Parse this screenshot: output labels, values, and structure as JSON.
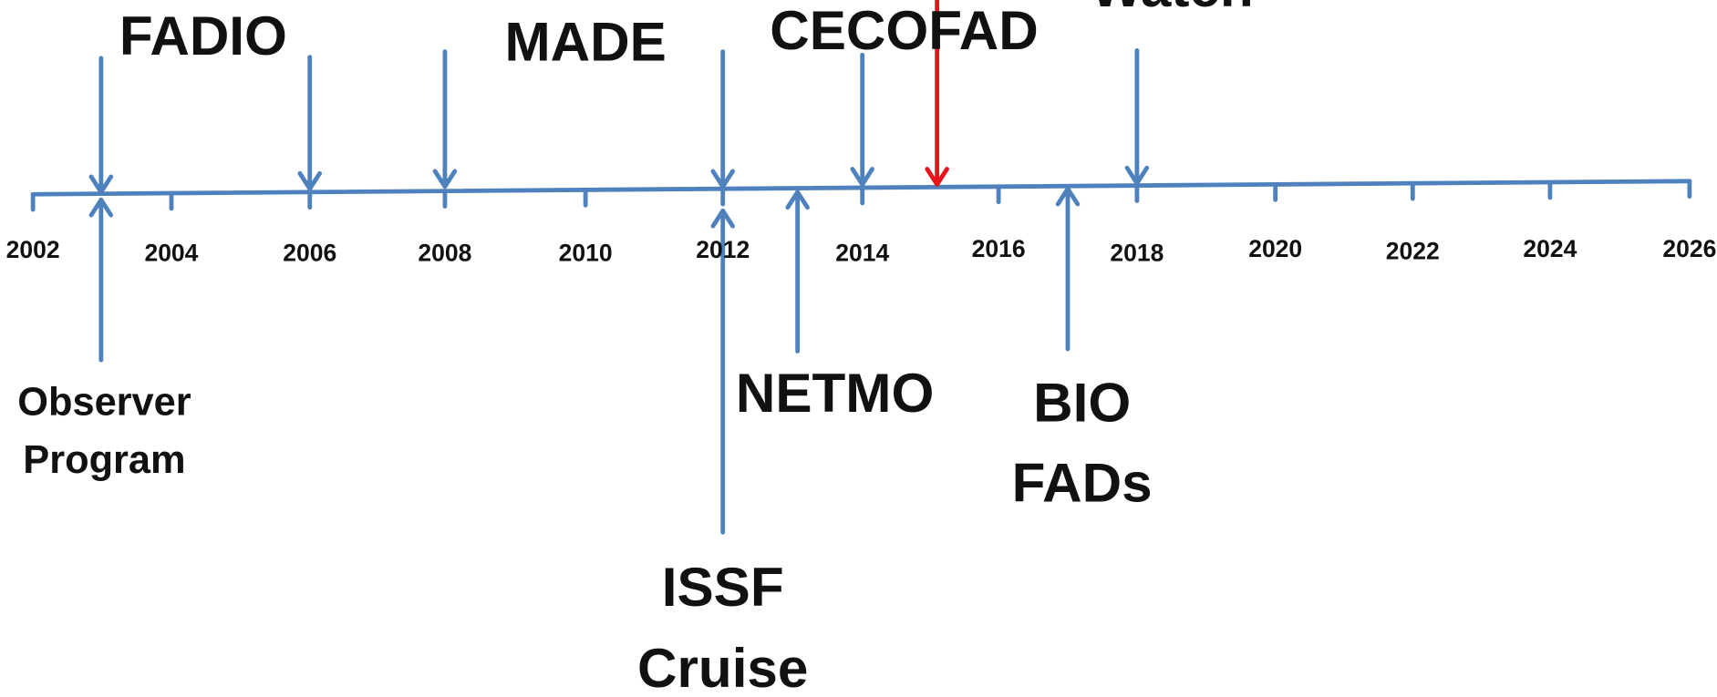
{
  "timeline": {
    "years": [
      "2002",
      "2004",
      "2006",
      "2008",
      "2010",
      "2012",
      "2014",
      "2016",
      "2018",
      "2020",
      "2022",
      "2024",
      "2026"
    ],
    "events_above": [
      {
        "lines": [
          "FADIO"
        ]
      },
      {
        "lines": [
          "MADE"
        ]
      },
      {
        "lines": [
          "CECOFAD"
        ]
      },
      {
        "lines": [
          "Watch"
        ]
      }
    ],
    "events_below": [
      {
        "lines": [
          "Observer",
          "Program"
        ]
      },
      {
        "lines": [
          "ISSF",
          "Cruise"
        ]
      },
      {
        "lines": [
          "NETMO"
        ]
      },
      {
        "lines": [
          "BIO",
          "FADs"
        ]
      }
    ]
  }
}
